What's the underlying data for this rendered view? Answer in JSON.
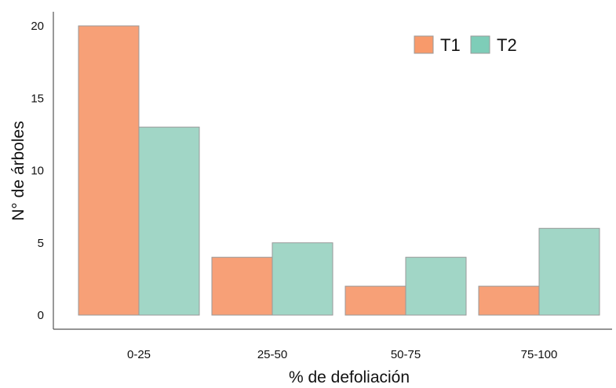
{
  "chart_data": {
    "type": "bar",
    "categories": [
      "0-25",
      "25-50",
      "50-75",
      "75-100"
    ],
    "series": [
      {
        "name": "T1",
        "values": [
          20,
          4,
          2,
          2
        ],
        "color": "#F7A077"
      },
      {
        "name": "T2",
        "values": [
          13,
          5,
          4,
          6
        ],
        "color": "#A1D6C6"
      }
    ],
    "xlabel": "% de defoliación",
    "ylabel": "N° de árboles",
    "ylim": [
      0,
      20
    ],
    "yticks": [
      0,
      5,
      10,
      15,
      20
    ],
    "grid": false,
    "legend_position": "top-right",
    "legend_swatch_colors": [
      "#F89A6B",
      "#7ECDB8"
    ]
  }
}
